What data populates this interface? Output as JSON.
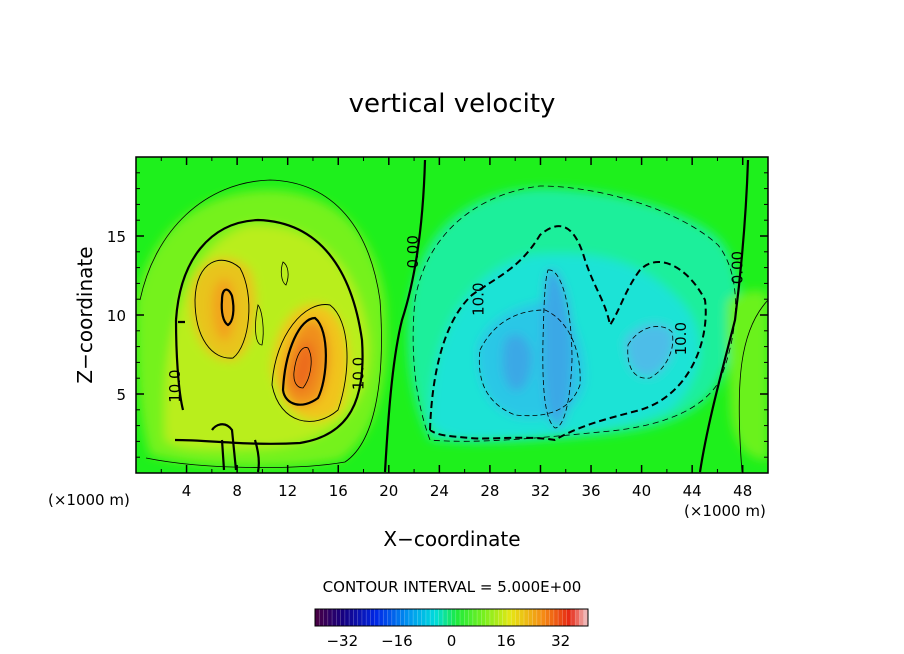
{
  "chart_data": {
    "type": "heatmap",
    "title": "vertical velocity",
    "xlabel": "X−coordinate",
    "ylabel": "Z−coordinate",
    "x_unit_left": "(×1000 m)",
    "x_unit_right": "(×1000 m)",
    "xlim": [
      0,
      50
    ],
    "ylim": [
      0,
      20
    ],
    "xticks": [
      "4",
      "8",
      "12",
      "16",
      "20",
      "24",
      "28",
      "32",
      "36",
      "40",
      "44",
      "48"
    ],
    "xtick_values": [
      4,
      8,
      12,
      16,
      20,
      24,
      28,
      32,
      36,
      40,
      44,
      48
    ],
    "yticks": [
      "5",
      "10",
      "15"
    ],
    "ytick_values": [
      5,
      10,
      15
    ],
    "contour_interval_text": "CONTOUR INTERVAL = 5.000E+00",
    "contour_interval": 5.0,
    "contour_labels": [
      {
        "text": "10.0",
        "x": 3.5,
        "y": 5.5
      },
      {
        "text": "10.0",
        "x": 18.0,
        "y": 6.3
      },
      {
        "text": "0.00",
        "x": 22.3,
        "y": 14.0
      },
      {
        "text": "10.0",
        "x": 27.5,
        "y": 11.0
      },
      {
        "text": "10.0",
        "x": 43.5,
        "y": 8.5
      },
      {
        "text": "0.00",
        "x": 48.0,
        "y": 13.0
      }
    ],
    "features": [
      {
        "type": "updraft_max",
        "x": 13.3,
        "z": 7.0,
        "value": 25
      },
      {
        "type": "updraft_max",
        "x": 7.3,
        "z": 10.5,
        "value": 20
      },
      {
        "type": "downdraft_min",
        "x": 30.5,
        "z": 7.5,
        "value": -12
      },
      {
        "type": "downdraft_min",
        "x": 33.8,
        "z": 8.5,
        "value": -12
      },
      {
        "type": "downdraft_min",
        "x": 40.7,
        "z": 8.0,
        "value": -11
      }
    ],
    "colorbar": {
      "ticks": [
        "−32",
        "−16",
        "0",
        "16",
        "32"
      ],
      "tick_values": [
        -32,
        -16,
        0,
        16,
        32
      ],
      "range": [
        -40,
        40
      ]
    },
    "grid": false
  }
}
